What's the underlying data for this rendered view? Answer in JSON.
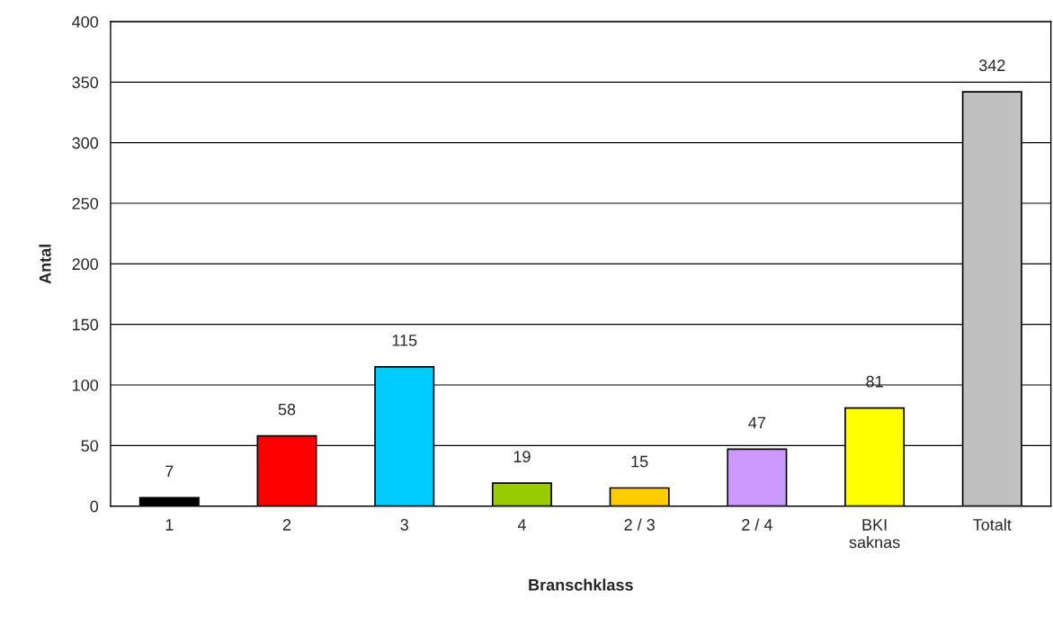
{
  "chart_data": {
    "type": "bar",
    "xlabel": "Branschklass",
    "ylabel": "Antal",
    "categories": [
      "1",
      "2",
      "3",
      "4",
      "2 / 3",
      "2 / 4",
      "BKI\nsaknas",
      "Totalt"
    ],
    "values": [
      7,
      58,
      115,
      19,
      15,
      47,
      81,
      342
    ],
    "colors": [
      "#000000",
      "#ff0000",
      "#00ccff",
      "#99cc00",
      "#ffcc00",
      "#cc99ff",
      "#ffff00",
      "#c0c0c0"
    ],
    "ylim": [
      0,
      400
    ],
    "yticks": [
      0,
      50,
      100,
      150,
      200,
      250,
      300,
      350,
      400
    ],
    "grid": "y",
    "data_labels": true,
    "legend": false
  }
}
